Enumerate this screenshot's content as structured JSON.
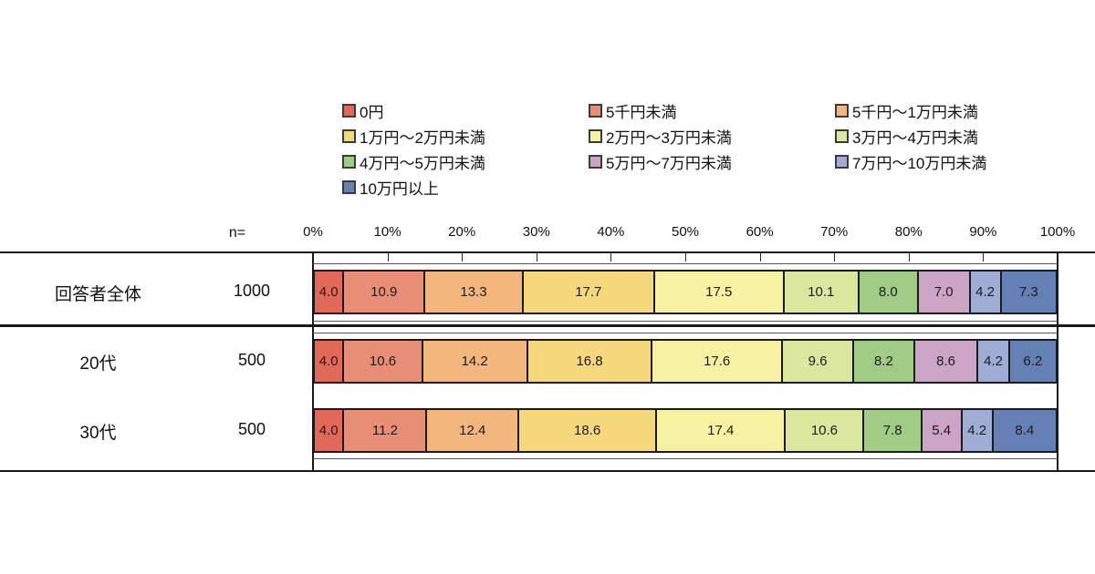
{
  "header": {
    "n_label": "n="
  },
  "chart_data": {
    "type": "bar",
    "subtype": "stacked-horizontal-100pct",
    "unit": "%",
    "title": "",
    "xlabel": "",
    "ylabel": "",
    "xlim": [
      0,
      100
    ],
    "grid": false,
    "legend_position": "top",
    "x_ticks": [
      "0%",
      "10%",
      "20%",
      "30%",
      "40%",
      "50%",
      "60%",
      "70%",
      "80%",
      "90%",
      "100%"
    ],
    "categories": [
      {
        "label": "0円",
        "color": "#e2685a"
      },
      {
        "label": "5千円未満",
        "color": "#e88e76"
      },
      {
        "label": "5千円～1万円未満",
        "color": "#f3b77e"
      },
      {
        "label": "1万円～2万円未満",
        "color": "#f5d87c"
      },
      {
        "label": "2万円～3万円未満",
        "color": "#f7f2a2"
      },
      {
        "label": "3万円～4万円未満",
        "color": "#dbe79d"
      },
      {
        "label": "4万円～5万円未満",
        "color": "#a0cc86"
      },
      {
        "label": "5万円～7万円未満",
        "color": "#cba4c6"
      },
      {
        "label": "7万円～10万円未満",
        "color": "#9fadd5"
      },
      {
        "label": "10万円以上",
        "color": "#6480b5"
      }
    ],
    "rows": [
      {
        "label": "回答者全体",
        "n": "1000",
        "values": [
          4.0,
          10.9,
          13.3,
          17.7,
          17.5,
          10.1,
          8.0,
          7.0,
          4.2,
          7.3
        ]
      },
      {
        "label": "20代",
        "n": "500",
        "values": [
          4.0,
          10.6,
          14.2,
          16.8,
          17.6,
          9.6,
          8.2,
          8.6,
          4.2,
          6.2
        ]
      },
      {
        "label": "30代",
        "n": "500",
        "values": [
          4.0,
          11.2,
          12.4,
          18.6,
          17.4,
          10.6,
          7.8,
          5.4,
          4.2,
          8.4
        ]
      }
    ]
  }
}
